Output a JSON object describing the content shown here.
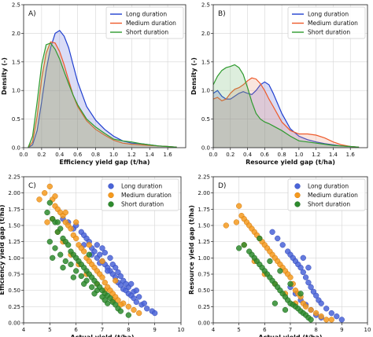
{
  "chart_data": [
    {
      "id": "A",
      "type": "area",
      "panel_label": "A)",
      "xlabel": "Efficiency yield gap (t/ha)",
      "ylabel": "Density (-)",
      "xlim": [
        0,
        1.8
      ],
      "ylim": [
        0,
        2.5
      ],
      "xticks": [
        "0.0",
        "0.2",
        "0.4",
        "0.6",
        "0.8",
        "1.0",
        "1.2",
        "1.4",
        "1.6"
      ],
      "yticks": [
        "0.0",
        "0.5",
        "1.0",
        "1.5",
        "2.0",
        "2.5"
      ],
      "legend_position": "top-right",
      "series": [
        {
          "name": "Long duration",
          "color": "#1f3fd0",
          "fill": "#5560d8",
          "x": [
            0.05,
            0.1,
            0.15,
            0.2,
            0.25,
            0.3,
            0.35,
            0.4,
            0.45,
            0.5,
            0.55,
            0.6,
            0.7,
            0.8,
            0.9,
            1.0,
            1.1,
            1.2,
            1.3,
            1.4,
            1.5,
            1.6,
            1.7
          ],
          "y": [
            0.0,
            0.05,
            0.3,
            0.8,
            1.35,
            1.75,
            2.0,
            2.05,
            1.95,
            1.75,
            1.45,
            1.15,
            0.72,
            0.48,
            0.32,
            0.2,
            0.12,
            0.08,
            0.07,
            0.05,
            0.03,
            0.02,
            0.01
          ]
        },
        {
          "name": "Medium duration",
          "color": "#ee5a2a",
          "fill": "#e88a6a",
          "x": [
            0.05,
            0.1,
            0.15,
            0.2,
            0.25,
            0.3,
            0.35,
            0.4,
            0.45,
            0.5,
            0.55,
            0.6,
            0.7,
            0.8,
            0.9,
            1.0,
            1.1,
            1.2,
            1.3,
            1.4,
            1.5,
            1.6,
            1.7
          ],
          "y": [
            0.0,
            0.1,
            0.55,
            1.2,
            1.65,
            1.85,
            1.83,
            1.68,
            1.45,
            1.18,
            0.92,
            0.72,
            0.47,
            0.32,
            0.22,
            0.13,
            0.08,
            0.06,
            0.05,
            0.04,
            0.03,
            0.02,
            0.01
          ]
        },
        {
          "name": "Short duration",
          "color": "#2e9a2e",
          "fill": "#66b066",
          "x": [
            0.05,
            0.1,
            0.15,
            0.2,
            0.25,
            0.3,
            0.35,
            0.4,
            0.45,
            0.5,
            0.55,
            0.6,
            0.7,
            0.8,
            0.9,
            1.0,
            1.1,
            1.2,
            1.3,
            1.4,
            1.5,
            1.6,
            1.7
          ],
          "y": [
            0.0,
            0.2,
            0.8,
            1.45,
            1.8,
            1.83,
            1.72,
            1.55,
            1.33,
            1.12,
            0.92,
            0.75,
            0.5,
            0.36,
            0.25,
            0.15,
            0.12,
            0.1,
            0.07,
            0.05,
            0.03,
            0.02,
            0.01
          ]
        }
      ]
    },
    {
      "id": "B",
      "type": "area",
      "panel_label": "B)",
      "xlabel": "Resource yield gap (t/ha)",
      "ylabel": "Density (-)",
      "xlim": [
        0,
        1.8
      ],
      "ylim": [
        0,
        2.5
      ],
      "xticks": [
        "0.0",
        "0.2",
        "0.4",
        "0.6",
        "0.8",
        "1.0",
        "1.2",
        "1.4",
        "1.6"
      ],
      "yticks": [
        "0.0",
        "0.5",
        "1.0",
        "1.5",
        "2.0",
        "2.5"
      ],
      "legend_position": "top-right",
      "series": [
        {
          "name": "Long duration",
          "color": "#1f3fd0",
          "fill": "#5560d8",
          "x": [
            0.0,
            0.05,
            0.1,
            0.15,
            0.2,
            0.25,
            0.3,
            0.35,
            0.4,
            0.45,
            0.5,
            0.55,
            0.6,
            0.65,
            0.7,
            0.8,
            0.9,
            1.0,
            1.1,
            1.2,
            1.3,
            1.4,
            1.5,
            1.6,
            1.7
          ],
          "y": [
            0.95,
            1.0,
            0.9,
            0.85,
            0.85,
            0.9,
            0.95,
            0.98,
            0.95,
            0.93,
            1.0,
            1.1,
            1.15,
            1.1,
            0.95,
            0.6,
            0.33,
            0.2,
            0.14,
            0.1,
            0.07,
            0.05,
            0.03,
            0.02,
            0.01
          ]
        },
        {
          "name": "Medium duration",
          "color": "#ee5a2a",
          "fill": "#e88a6a",
          "x": [
            0.0,
            0.05,
            0.1,
            0.15,
            0.2,
            0.25,
            0.3,
            0.35,
            0.4,
            0.45,
            0.5,
            0.55,
            0.6,
            0.65,
            0.7,
            0.8,
            0.9,
            1.0,
            1.1,
            1.2,
            1.3,
            1.4,
            1.5,
            1.6,
            1.7
          ],
          "y": [
            0.85,
            0.88,
            0.82,
            0.85,
            0.95,
            1.02,
            1.05,
            1.1,
            1.17,
            1.22,
            1.2,
            1.12,
            1.0,
            0.85,
            0.72,
            0.45,
            0.3,
            0.24,
            0.24,
            0.22,
            0.17,
            0.1,
            0.05,
            0.02,
            0.01
          ]
        },
        {
          "name": "Short duration",
          "color": "#2e9a2e",
          "fill": "#66b066",
          "x": [
            0.0,
            0.05,
            0.1,
            0.15,
            0.2,
            0.25,
            0.3,
            0.35,
            0.4,
            0.45,
            0.5,
            0.55,
            0.6,
            0.65,
            0.7,
            0.8,
            0.9,
            1.0,
            1.1,
            1.2,
            1.3,
            1.4,
            1.5,
            1.6,
            1.7
          ],
          "y": [
            1.1,
            1.25,
            1.35,
            1.4,
            1.42,
            1.45,
            1.4,
            1.28,
            1.05,
            0.8,
            0.6,
            0.5,
            0.45,
            0.42,
            0.38,
            0.3,
            0.2,
            0.12,
            0.1,
            0.08,
            0.06,
            0.04,
            0.03,
            0.02,
            0.01
          ]
        }
      ]
    },
    {
      "id": "C",
      "type": "scatter",
      "panel_label": "C)",
      "xlabel": "Actual yield (t/ha)",
      "ylabel": "Efficiency yield gap (t/ha)",
      "xlim": [
        4,
        10
      ],
      "ylim": [
        0,
        2.25
      ],
      "xticks": [
        "4",
        "5",
        "6",
        "7",
        "8",
        "9",
        "10"
      ],
      "yticks": [
        "0.00",
        "0.25",
        "0.50",
        "0.75",
        "1.00",
        "1.25",
        "1.50",
        "1.75",
        "2.00",
        "2.25"
      ],
      "legend_position": "top-right",
      "series": [
        {
          "name": "Long duration",
          "color": "#4a64d8",
          "edge": "#3248b8",
          "x": [
            5.5,
            5.7,
            5.9,
            6.0,
            6.2,
            6.3,
            6.4,
            6.5,
            6.6,
            6.7,
            6.8,
            6.9,
            7.0,
            7.1,
            7.2,
            7.3,
            7.4,
            7.5,
            7.6,
            7.7,
            7.8,
            7.9,
            8.0,
            8.1,
            8.2,
            8.3,
            8.5,
            8.7,
            8.9,
            9.0,
            6.3,
            6.6,
            6.9,
            7.2,
            7.4,
            7.6,
            7.8,
            8.0,
            8.2,
            8.4,
            7.0,
            7.3,
            7.5,
            7.7,
            7.9,
            8.1,
            8.3,
            8.6,
            6.8,
            7.1
          ],
          "y": [
            1.6,
            1.55,
            1.45,
            1.5,
            1.4,
            1.35,
            1.3,
            1.25,
            1.15,
            1.1,
            1.0,
            1.05,
            0.95,
            0.9,
            0.85,
            0.8,
            0.75,
            0.7,
            0.62,
            0.58,
            0.52,
            0.5,
            0.45,
            0.42,
            0.38,
            0.32,
            0.28,
            0.22,
            0.18,
            0.15,
            1.2,
            1.05,
            0.92,
            0.8,
            0.9,
            0.78,
            0.65,
            0.55,
            0.48,
            0.4,
            1.15,
            1.0,
            0.85,
            0.72,
            0.6,
            0.6,
            0.5,
            0.3,
            1.2,
            1.08
          ]
        },
        {
          "name": "Medium duration",
          "color": "#f59a1e",
          "edge": "#d27a10",
          "x": [
            4.6,
            4.9,
            5.0,
            5.1,
            5.2,
            5.3,
            5.4,
            5.5,
            5.6,
            5.7,
            5.8,
            5.9,
            6.0,
            6.1,
            6.2,
            6.3,
            6.4,
            6.5,
            6.6,
            6.7,
            6.8,
            6.9,
            7.0,
            7.1,
            7.2,
            7.3,
            7.4,
            7.5,
            7.6,
            7.8,
            8.0,
            8.2,
            8.4,
            5.1,
            5.3,
            5.5,
            5.8,
            6.1,
            6.4,
            6.8,
            7.1,
            7.4,
            7.7,
            4.8,
            5.2,
            5.6,
            6.0,
            6.5,
            7.0,
            7.5
          ],
          "y": [
            1.9,
            1.55,
            2.1,
            1.9,
            1.8,
            1.75,
            1.7,
            1.65,
            1.55,
            1.5,
            1.45,
            1.35,
            1.3,
            1.2,
            1.15,
            1.1,
            1.0,
            0.95,
            0.9,
            0.85,
            0.8,
            0.75,
            0.7,
            0.62,
            0.55,
            0.5,
            0.45,
            0.4,
            0.35,
            0.3,
            0.25,
            0.2,
            0.15,
            1.6,
            1.4,
            1.25,
            1.05,
            0.9,
            0.75,
            0.6,
            0.5,
            0.35,
            0.28,
            2.0,
            1.95,
            1.7,
            1.55,
            1.2,
            0.95,
            0.65
          ]
        },
        {
          "name": "Short duration",
          "color": "#2e8b2e",
          "edge": "#1f6a1f",
          "x": [
            4.9,
            5.0,
            5.1,
            5.2,
            5.3,
            5.4,
            5.5,
            5.6,
            5.7,
            5.8,
            5.9,
            6.0,
            6.1,
            6.2,
            6.3,
            6.4,
            6.5,
            6.6,
            6.7,
            6.8,
            6.9,
            7.0,
            7.1,
            7.2,
            7.3,
            7.4,
            7.5,
            7.6,
            7.7,
            8.0,
            5.0,
            5.2,
            5.4,
            5.6,
            5.8,
            6.0,
            6.2,
            6.4,
            6.6,
            6.8,
            7.0,
            7.2,
            5.1,
            5.5,
            5.9,
            6.3,
            6.7,
            7.1,
            5.3,
            6.5
          ],
          "y": [
            1.7,
            1.85,
            1.6,
            1.55,
            1.4,
            1.45,
            1.3,
            1.25,
            1.2,
            1.1,
            1.05,
            1.0,
            0.95,
            0.9,
            0.85,
            0.8,
            0.75,
            0.7,
            0.65,
            0.6,
            0.55,
            0.5,
            0.45,
            0.42,
            0.38,
            0.32,
            0.28,
            0.22,
            0.18,
            0.12,
            1.25,
            1.15,
            1.05,
            0.95,
            0.9,
            0.8,
            0.72,
            0.65,
            0.55,
            0.5,
            0.4,
            0.3,
            1.0,
            0.85,
            0.7,
            0.6,
            0.45,
            0.35,
            1.55,
            1.05
          ]
        }
      ]
    },
    {
      "id": "D",
      "type": "scatter",
      "panel_label": "D)",
      "xlabel": "Actual yield (t/ha)",
      "ylabel": "Resource yield gap (t/ha)",
      "xlim": [
        4,
        10
      ],
      "ylim": [
        0,
        2.25
      ],
      "xticks": [
        "4",
        "5",
        "6",
        "7",
        "8",
        "9",
        "10"
      ],
      "yticks": [
        "0.00",
        "0.25",
        "0.50",
        "0.75",
        "1.00",
        "1.25",
        "1.50",
        "1.75",
        "2.00",
        "2.25"
      ],
      "legend_position": "top-right",
      "series": [
        {
          "name": "Long duration",
          "color": "#4a64d8",
          "edge": "#3248b8",
          "x": [
            6.3,
            6.5,
            6.7,
            6.9,
            7.0,
            7.1,
            7.2,
            7.3,
            7.4,
            7.5,
            7.6,
            7.7,
            7.8,
            7.9,
            8.0,
            8.1,
            8.2,
            8.4,
            8.6,
            8.8,
            9.0,
            7.0,
            7.2,
            7.4,
            7.6,
            7.8,
            8.0,
            8.2,
            7.5,
            7.7
          ],
          "y": [
            1.4,
            1.3,
            1.2,
            1.1,
            1.05,
            1.0,
            0.95,
            0.9,
            0.85,
            0.78,
            0.7,
            0.62,
            0.55,
            0.48,
            0.42,
            0.35,
            0.3,
            0.22,
            0.15,
            0.1,
            0.05,
            0.55,
            0.45,
            0.35,
            0.28,
            0.2,
            0.12,
            0.08,
            1.0,
            0.85
          ]
        },
        {
          "name": "Medium duration",
          "color": "#f59a1e",
          "edge": "#d27a10",
          "x": [
            4.5,
            4.9,
            5.0,
            5.1,
            5.2,
            5.3,
            5.4,
            5.5,
            5.6,
            5.7,
            5.8,
            5.9,
            6.0,
            6.1,
            6.2,
            6.3,
            6.4,
            6.5,
            6.6,
            6.7,
            6.8,
            6.9,
            7.0,
            7.1,
            7.2,
            7.3,
            7.4,
            7.5,
            7.6,
            7.8,
            8.0,
            8.2,
            5.2,
            5.6,
            6.0,
            6.4,
            6.8,
            7.2,
            8.4,
            8.6
          ],
          "y": [
            1.5,
            1.55,
            1.8,
            1.65,
            1.6,
            1.55,
            1.5,
            1.45,
            1.4,
            1.35,
            1.3,
            1.25,
            1.2,
            1.15,
            1.1,
            1.05,
            1.0,
            0.95,
            0.9,
            0.85,
            0.8,
            0.75,
            0.7,
            0.6,
            0.5,
            0.45,
            0.4,
            0.3,
            0.25,
            0.2,
            0.15,
            0.1,
            1.2,
            0.95,
            0.75,
            0.6,
            0.45,
            0.3,
            0.05,
            0.05
          ]
        },
        {
          "name": "Short duration",
          "color": "#2e8b2e",
          "edge": "#1f6a1f",
          "x": [
            5.0,
            5.2,
            5.4,
            5.5,
            5.6,
            5.7,
            5.8,
            5.9,
            6.0,
            6.1,
            6.2,
            6.3,
            6.4,
            6.5,
            6.6,
            6.7,
            6.8,
            6.9,
            7.0,
            7.1,
            7.2,
            7.3,
            7.4,
            7.5,
            7.6,
            7.7,
            7.8,
            5.8,
            6.2,
            6.6,
            7.0,
            7.4,
            6.4,
            6.8
          ],
          "y": [
            1.15,
            1.2,
            1.1,
            1.05,
            1.0,
            0.95,
            0.9,
            0.85,
            0.8,
            0.75,
            0.7,
            0.65,
            0.6,
            0.55,
            0.5,
            0.45,
            0.4,
            0.35,
            0.3,
            0.28,
            0.25,
            0.22,
            0.18,
            0.15,
            0.12,
            0.08,
            0.05,
            1.3,
            0.95,
            0.8,
            0.6,
            0.45,
            0.3,
            0.2
          ]
        }
      ]
    }
  ]
}
